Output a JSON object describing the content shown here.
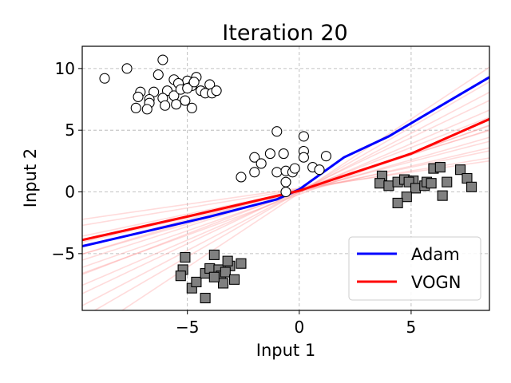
{
  "chart_data": {
    "type": "scatter",
    "title": "Iteration 20",
    "xlabel": "Input 1",
    "ylabel": "Input 2",
    "xlim": [
      -9.7,
      8.5
    ],
    "ylim": [
      -9.6,
      11.8
    ],
    "xticks": [
      -5,
      0,
      5
    ],
    "yticks": [
      -5,
      0,
      5,
      10
    ],
    "xtick_labels": [
      "−5",
      "0",
      "5"
    ],
    "ytick_labels": [
      "−5",
      "0",
      "5",
      "10"
    ],
    "grid": true,
    "legend_position": "lower-right",
    "colors": {
      "adam": "#0000ff",
      "vogn": "#ff0000",
      "vogn_samples": "#ff9999",
      "class_square_fill": "#808080",
      "class_circle_fill": "#ffffff",
      "marker_edge": "#000000",
      "grid": "#b0b0b0"
    },
    "series": [
      {
        "name": "Adam",
        "kind": "line",
        "points": [
          [
            -9.7,
            -4.4
          ],
          [
            -4,
            -2.0
          ],
          [
            -1,
            -0.6
          ],
          [
            0,
            0.2
          ],
          [
            1,
            1.5
          ],
          [
            2,
            2.8
          ],
          [
            4,
            4.5
          ],
          [
            8.5,
            9.3
          ]
        ]
      },
      {
        "name": "VOGN",
        "kind": "line",
        "points": [
          [
            -9.7,
            -3.9
          ],
          [
            -5,
            -2.0
          ],
          [
            0,
            0.1
          ],
          [
            5,
            3.1
          ],
          [
            8.5,
            5.9
          ]
        ]
      }
    ],
    "vogn_samples": [
      {
        "slope": 0.38,
        "intercept": 0.1
      },
      {
        "slope": 0.42,
        "intercept": 0.0
      },
      {
        "slope": 0.47,
        "intercept": 0.1
      },
      {
        "slope": 0.52,
        "intercept": 0.0
      },
      {
        "slope": 0.58,
        "intercept": 0.1
      },
      {
        "slope": 0.63,
        "intercept": 0.0
      },
      {
        "slope": 0.7,
        "intercept": 0.1
      },
      {
        "slope": 0.78,
        "intercept": 0.0
      },
      {
        "slope": 0.86,
        "intercept": 0.1
      },
      {
        "slope": 0.95,
        "intercept": 0.0
      },
      {
        "slope": 0.3,
        "intercept": 0.2
      },
      {
        "slope": 0.26,
        "intercept": 0.3
      },
      {
        "slope": 1.05,
        "intercept": 0.0
      },
      {
        "slope": 1.2,
        "intercept": -0.1
      },
      {
        "slope": 0.55,
        "intercept": 0.3
      },
      {
        "slope": 0.66,
        "intercept": -0.2
      }
    ],
    "circles": [
      [
        -8.7,
        9.2
      ],
      [
        -7.7,
        10.0
      ],
      [
        -6.1,
        10.7
      ],
      [
        -6.3,
        9.5
      ],
      [
        -5.6,
        9.1
      ],
      [
        -5.0,
        9.0
      ],
      [
        -4.6,
        9.3
      ],
      [
        -4.8,
        8.6
      ],
      [
        -4.0,
        8.7
      ],
      [
        -4.4,
        8.2
      ],
      [
        -5.4,
        8.8
      ],
      [
        -5.9,
        8.2
      ],
      [
        -6.5,
        8.1
      ],
      [
        -7.1,
        8.1
      ],
      [
        -7.2,
        7.7
      ],
      [
        -6.7,
        7.5
      ],
      [
        -6.1,
        7.6
      ],
      [
        -5.6,
        7.8
      ],
      [
        -5.1,
        7.4
      ],
      [
        -5.3,
        8.3
      ],
      [
        -4.2,
        8.0
      ],
      [
        -3.9,
        8.0
      ],
      [
        -5.5,
        7.1
      ],
      [
        -6.0,
        7.0
      ],
      [
        -6.7,
        7.2
      ],
      [
        -7.3,
        6.8
      ],
      [
        -6.8,
        6.7
      ],
      [
        -4.8,
        6.8
      ],
      [
        -5.0,
        8.4
      ],
      [
        -4.7,
        8.9
      ],
      [
        -3.7,
        8.2
      ],
      [
        -1.0,
        4.9
      ],
      [
        0.2,
        4.5
      ],
      [
        -1.3,
        3.1
      ],
      [
        -0.7,
        3.1
      ],
      [
        -2.0,
        2.8
      ],
      [
        -1.7,
        2.3
      ],
      [
        -2.0,
        1.6
      ],
      [
        -2.6,
        1.2
      ],
      [
        -1.0,
        1.6
      ],
      [
        -0.6,
        1.7
      ],
      [
        -0.3,
        1.6
      ],
      [
        -0.2,
        1.9
      ],
      [
        0.2,
        3.3
      ],
      [
        0.2,
        2.8
      ],
      [
        0.6,
        2.0
      ],
      [
        0.9,
        1.8
      ],
      [
        1.2,
        2.9
      ],
      [
        -0.6,
        0.8
      ],
      [
        -0.6,
        0.0
      ]
    ],
    "squares": [
      [
        3.7,
        1.3
      ],
      [
        3.6,
        0.7
      ],
      [
        4.0,
        0.5
      ],
      [
        4.4,
        0.8
      ],
      [
        4.7,
        1.0
      ],
      [
        5.1,
        0.9
      ],
      [
        4.9,
        0.8
      ],
      [
        5.2,
        0.3
      ],
      [
        5.6,
        0.5
      ],
      [
        5.7,
        0.8
      ],
      [
        6.0,
        1.9
      ],
      [
        6.3,
        2.0
      ],
      [
        6.6,
        0.8
      ],
      [
        6.4,
        -0.3
      ],
      [
        7.2,
        1.8
      ],
      [
        7.5,
        1.1
      ],
      [
        7.7,
        0.4
      ],
      [
        4.8,
        -0.4
      ],
      [
        4.4,
        -0.9
      ],
      [
        5.9,
        0.7
      ],
      [
        -5.1,
        -5.3
      ],
      [
        -5.2,
        -6.3
      ],
      [
        -5.3,
        -6.8
      ],
      [
        -4.8,
        -7.8
      ],
      [
        -4.6,
        -7.3
      ],
      [
        -4.2,
        -8.6
      ],
      [
        -4.2,
        -6.6
      ],
      [
        -4.0,
        -6.2
      ],
      [
        -3.8,
        -5.1
      ],
      [
        -3.6,
        -6.3
      ],
      [
        -3.5,
        -6.8
      ],
      [
        -3.4,
        -7.4
      ],
      [
        -3.1,
        -6.0
      ],
      [
        -3.2,
        -5.6
      ],
      [
        -3.3,
        -6.5
      ],
      [
        -2.9,
        -7.1
      ],
      [
        -2.6,
        -5.8
      ],
      [
        -3.8,
        -6.9
      ]
    ]
  }
}
